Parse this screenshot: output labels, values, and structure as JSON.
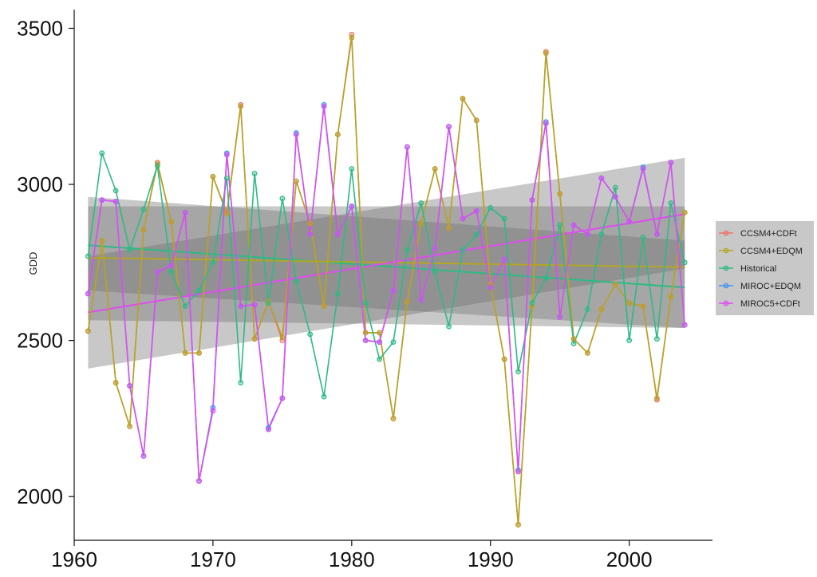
{
  "chart_data": {
    "type": "line",
    "xlabel": "",
    "ylabel": "GDD",
    "xlim": [
      1960,
      2006
    ],
    "ylim": [
      1860,
      3560
    ],
    "xticks": [
      1960,
      1970,
      1980,
      1990,
      2000
    ],
    "yticks": [
      2000,
      2500,
      3000,
      3500
    ],
    "grid": false,
    "legend_position": "right",
    "x": [
      1961,
      1962,
      1963,
      1964,
      1965,
      1966,
      1967,
      1968,
      1969,
      1970,
      1971,
      1972,
      1973,
      1974,
      1975,
      1976,
      1977,
      1978,
      1979,
      1980,
      1981,
      1982,
      1983,
      1984,
      1985,
      1986,
      1987,
      1988,
      1989,
      1990,
      1991,
      1992,
      1993,
      1994,
      1995,
      1996,
      1997,
      1998,
      1999,
      2000,
      2001,
      2002,
      2003,
      2004
    ],
    "series": [
      {
        "name": "CCSM4+CDFt",
        "color": "#f07468",
        "values": [
          2530,
          2820,
          2365,
          2225,
          2855,
          3070,
          2880,
          2460,
          2460,
          3025,
          2910,
          3255,
          2505,
          2625,
          2500,
          3010,
          2875,
          2610,
          3160,
          3480,
          2525,
          2525,
          2250,
          2625,
          2875,
          3050,
          2860,
          3275,
          3205,
          2680,
          2440,
          1910,
          2610,
          3425,
          2970,
          2505,
          2460,
          2600,
          2680,
          2620,
          2610,
          2310,
          2640,
          2910
        ]
      },
      {
        "name": "CCSM4+EDQM",
        "color": "#b3a623",
        "values": [
          2530,
          2820,
          2365,
          2225,
          2855,
          3065,
          2880,
          2460,
          2460,
          3025,
          2905,
          3250,
          2505,
          2625,
          2510,
          3010,
          2875,
          2610,
          3160,
          3470,
          2525,
          2525,
          2250,
          2625,
          2875,
          3050,
          2860,
          3275,
          3205,
          2680,
          2440,
          1910,
          2610,
          3420,
          2970,
          2505,
          2460,
          2600,
          2680,
          2620,
          2610,
          2315,
          2640,
          2910
        ]
      },
      {
        "name": "Historical",
        "color": "#2cbb84",
        "values": [
          2770,
          3100,
          2980,
          2790,
          2920,
          3060,
          2720,
          2610,
          2660,
          2750,
          3020,
          2365,
          3035,
          2620,
          2955,
          2690,
          2520,
          2320,
          2650,
          3050,
          2620,
          2440,
          2495,
          2790,
          2940,
          2720,
          2545,
          2790,
          2840,
          2925,
          2890,
          2400,
          2620,
          2700,
          2870,
          2490,
          2600,
          2840,
          2990,
          2500,
          2830,
          2505,
          2940,
          2750
        ]
      },
      {
        "name": "MIROC+EDQM",
        "color": "#3f96ee",
        "values": [
          2650,
          2950,
          2945,
          2355,
          2130,
          2720,
          2740,
          2910,
          2050,
          2285,
          3100,
          2610,
          2615,
          2220,
          2315,
          3165,
          2840,
          3255,
          2840,
          2930,
          2500,
          2495,
          2660,
          3120,
          2630,
          2795,
          3185,
          2890,
          2915,
          2670,
          2760,
          2085,
          2950,
          3200,
          2575,
          2870,
          2840,
          3020,
          2960,
          2880,
          3055,
          2840,
          3070,
          2550
        ]
      },
      {
        "name": "MIROC5+CDFt",
        "color": "#e04cf0",
        "values": [
          2650,
          2950,
          2945,
          2355,
          2130,
          2720,
          2740,
          2910,
          2050,
          2275,
          3095,
          2610,
          2615,
          2215,
          2315,
          3160,
          2840,
          3250,
          2840,
          2930,
          2500,
          2495,
          2660,
          3120,
          2630,
          2795,
          3185,
          2890,
          2915,
          2670,
          2760,
          2080,
          2950,
          3195,
          2575,
          2870,
          2840,
          3020,
          2960,
          2880,
          3050,
          2840,
          3070,
          2550
        ]
      }
    ],
    "trend_lines": [
      {
        "series": "Historical",
        "color": "#2cbb84",
        "x": [
          1961,
          2004
        ],
        "y": [
          2805,
          2670
        ],
        "band_lower": [
          2660,
          2540
        ],
        "band_upper": [
          2960,
          2820
        ]
      },
      {
        "series": "CCSM4+CDFt",
        "color": "#b3a623",
        "x": [
          1961,
          2004
        ],
        "y": [
          2765,
          2735
        ],
        "band_lower": [
          2565,
          2540
        ],
        "band_upper": [
          2930,
          2930
        ]
      },
      {
        "series": "MIROC5+CDFt",
        "color": "#e04cf0",
        "x": [
          1961,
          2004
        ],
        "y": [
          2590,
          2905
        ],
        "band_lower": [
          2410,
          2730
        ],
        "band_upper": [
          2770,
          3085
        ]
      }
    ]
  }
}
